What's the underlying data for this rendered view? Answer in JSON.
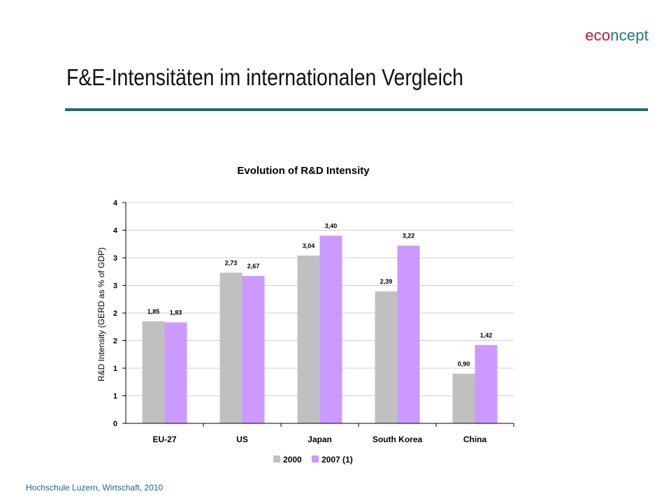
{
  "brand": {
    "part1": "eco",
    "part2": "ncept"
  },
  "slide_title": "F&E-Intensitäten im internationalen Vergleich",
  "footer": "Hochschule Luzern,  Wirtschaft, 2010",
  "colors": {
    "accent_rule": "#1f6b6b",
    "series_2000": "#c0c0c0",
    "series_2007": "#cc99ff",
    "brand_red": "#c8102e",
    "brand_teal": "#1a7a78"
  },
  "chart_data": {
    "type": "bar",
    "title": "Evolution of R&D Intensity",
    "ylabel": "R&D Intensity (GERD as % of GDP)",
    "xlabel": "",
    "categories": [
      "EU-27",
      "US",
      "Japan",
      "South Korea",
      "China"
    ],
    "series": [
      {
        "name": "2000",
        "values": [
          1.85,
          2.73,
          3.04,
          2.39,
          0.9
        ],
        "labels": [
          "1,85",
          "2,73",
          "3,04",
          "2,39",
          "0,90"
        ],
        "color": "#c0c0c0"
      },
      {
        "name": "2007 (1)",
        "values": [
          1.83,
          2.67,
          3.4,
          3.22,
          1.42
        ],
        "labels": [
          "1,83",
          "2,67",
          "3,40",
          "3,22",
          "1,42"
        ],
        "color": "#cc99ff"
      }
    ],
    "y_tick_labels": [
      "0",
      "1",
      "1",
      "2",
      "2",
      "3",
      "3",
      "4",
      "4"
    ],
    "ylim": [
      0,
      4
    ],
    "grid": true,
    "legend_position": "bottom"
  }
}
